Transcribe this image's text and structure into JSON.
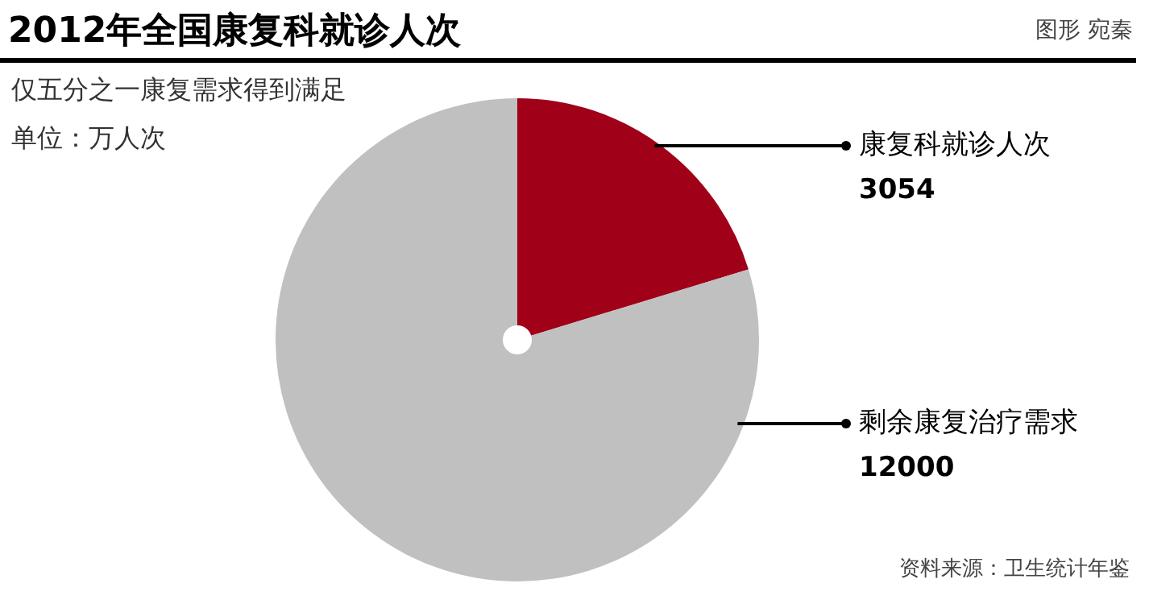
{
  "chart_data": {
    "type": "pie",
    "title": "2012年全国康复科就诊人次",
    "subtitle": "仅五分之一康复需求得到满足",
    "annotations": [
      "单位：万人次",
      "图形 宛秦",
      "资料来源：卫生统计年鉴"
    ],
    "categories": [
      "康复科就诊人次",
      "剩余康复治疗需求"
    ],
    "values": [
      3054,
      12000
    ],
    "colors": [
      "#a00018",
      "#c0c0c0"
    ],
    "data_labels": true
  }
}
